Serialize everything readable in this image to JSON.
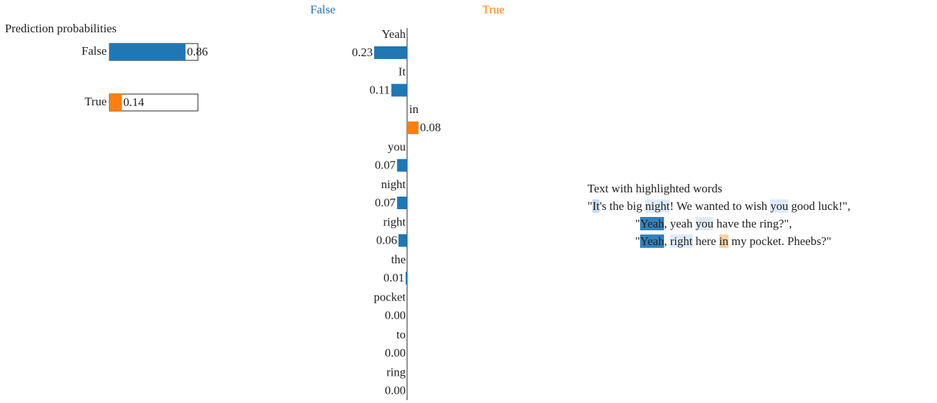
{
  "prediction": {
    "title": "Prediction probabilities",
    "classes": [
      {
        "name": "False",
        "value": 0.86,
        "value_label": "0.86",
        "color": "#1f77b4"
      },
      {
        "name": "True",
        "value": 0.14,
        "value_label": "0.14",
        "color": "#ff7f0e"
      }
    ]
  },
  "explanation": {
    "legend": [
      {
        "name": "False",
        "color": "#1f77b4"
      },
      {
        "name": "True",
        "color": "#ff7f0e"
      }
    ],
    "features": [
      {
        "name": "Yeah",
        "value": 0.23,
        "value_label": "0.23",
        "class": "False"
      },
      {
        "name": "It",
        "value": 0.11,
        "value_label": "0.11",
        "class": "False"
      },
      {
        "name": "in",
        "value": 0.08,
        "value_label": "0.08",
        "class": "True"
      },
      {
        "name": "you",
        "value": 0.07,
        "value_label": "0.07",
        "class": "False"
      },
      {
        "name": "night",
        "value": 0.07,
        "value_label": "0.07",
        "class": "False"
      },
      {
        "name": "right",
        "value": 0.06,
        "value_label": "0.06",
        "class": "False"
      },
      {
        "name": "the",
        "value": 0.01,
        "value_label": "0.01",
        "class": "False"
      },
      {
        "name": "pocket",
        "value": 0,
        "value_label": "0.00",
        "class": "False"
      },
      {
        "name": "to",
        "value": 0,
        "value_label": "0.00",
        "class": "False"
      },
      {
        "name": "ring",
        "value": 0,
        "value_label": "0.00",
        "class": "False"
      }
    ]
  },
  "text": {
    "title": "Text with highlighted words",
    "lines": [
      [
        {
          "text": "\""
        },
        {
          "text": "It",
          "color": "#c6dbef"
        },
        {
          "text": "'s the big "
        },
        {
          "text": "night",
          "color": "#deebf7"
        },
        {
          "text": "! We wanted to wish "
        },
        {
          "text": "you",
          "color": "#deebf7"
        },
        {
          "text": " good luck!\","
        }
      ],
      [
        {
          "text": "\""
        },
        {
          "text": "Yeah",
          "color": "#3182bd"
        },
        {
          "text": ", yeah "
        },
        {
          "text": "you",
          "color": "#deebf7"
        },
        {
          "text": " have the ring?\","
        }
      ],
      [
        {
          "text": "\""
        },
        {
          "text": "Yeah",
          "color": "#3182bd"
        },
        {
          "text": ", "
        },
        {
          "text": "right",
          "color": "#deebf7"
        },
        {
          "text": " here "
        },
        {
          "text": "in",
          "color": "#fdd0a2"
        },
        {
          "text": " my pocket. Pheebs?\""
        }
      ]
    ]
  }
}
